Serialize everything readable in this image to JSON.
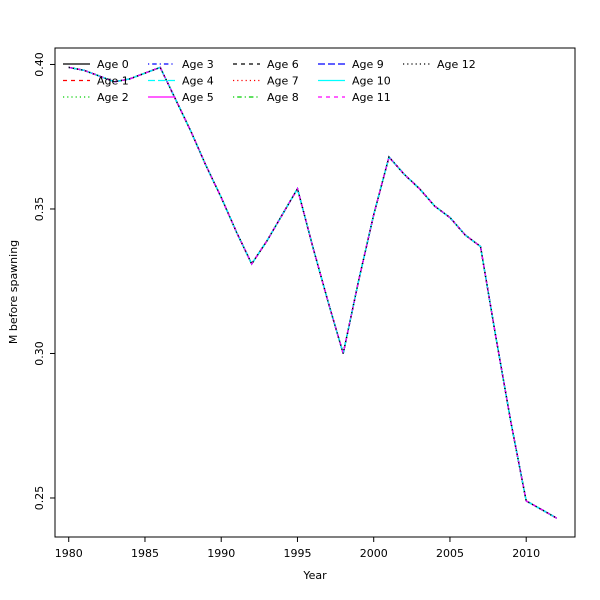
{
  "figure": {
    "xlabel": "Year",
    "ylabel": "M before spawning"
  },
  "chart_data": {
    "type": "line",
    "title": "",
    "xlabel": "Year",
    "ylabel": "M before spawning",
    "grid": false,
    "legend_position": "top-left",
    "note": "All 13 age series have identical values and are overplotted, producing a mixed magenta/cyan/black dashed curve",
    "x": [
      1980,
      1981,
      1982,
      1983,
      1984,
      1985,
      1986,
      1987,
      1988,
      1989,
      1990,
      1991,
      1992,
      1993,
      1994,
      1995,
      1996,
      1997,
      1998,
      1999,
      2000,
      2001,
      2002,
      2003,
      2004,
      2005,
      2006,
      2007,
      2008,
      2009,
      2010,
      2011,
      2012
    ],
    "values": [
      0.399,
      0.398,
      0.396,
      0.394,
      0.395,
      0.397,
      0.399,
      0.388,
      0.377,
      0.365,
      0.354,
      0.342,
      0.331,
      0.339,
      0.348,
      0.357,
      0.337,
      0.318,
      0.3,
      0.325,
      0.348,
      0.368,
      0.362,
      0.357,
      0.351,
      0.347,
      0.341,
      0.337,
      0.306,
      0.276,
      0.249,
      0.246,
      0.243
    ],
    "series": [
      {
        "name": "Age 0",
        "color": "#000000",
        "lty": "solid"
      },
      {
        "name": "Age 1",
        "color": "#FF0000",
        "lty": "dashed"
      },
      {
        "name": "Age 2",
        "color": "#00CD00",
        "lty": "dotted"
      },
      {
        "name": "Age 3",
        "color": "#0000FF",
        "lty": "dotdash"
      },
      {
        "name": "Age 4",
        "color": "#00FFFF",
        "lty": "longdash"
      },
      {
        "name": "Age 5",
        "color": "#FF00FF",
        "lty": "solid"
      },
      {
        "name": "Age 6",
        "color": "#000000",
        "lty": "dashed"
      },
      {
        "name": "Age 7",
        "color": "#FF0000",
        "lty": "dotted"
      },
      {
        "name": "Age 8",
        "color": "#00CD00",
        "lty": "dotdash"
      },
      {
        "name": "Age 9",
        "color": "#0000FF",
        "lty": "longdash"
      },
      {
        "name": "Age 10",
        "color": "#00FFFF",
        "lty": "solid"
      },
      {
        "name": "Age 11",
        "color": "#FF00FF",
        "lty": "dashed"
      },
      {
        "name": "Age 12",
        "color": "#000000",
        "lty": "dotted"
      }
    ],
    "xticks": [
      1980,
      1985,
      1990,
      1995,
      2000,
      2005,
      2010
    ],
    "yticks": [
      0.25,
      0.3,
      0.35,
      0.4
    ],
    "xlim": [
      1979.1,
      2013.2
    ],
    "ylim": [
      0.2365,
      0.4057
    ],
    "axis_color": "#000000",
    "background_color": "#ffffff"
  }
}
